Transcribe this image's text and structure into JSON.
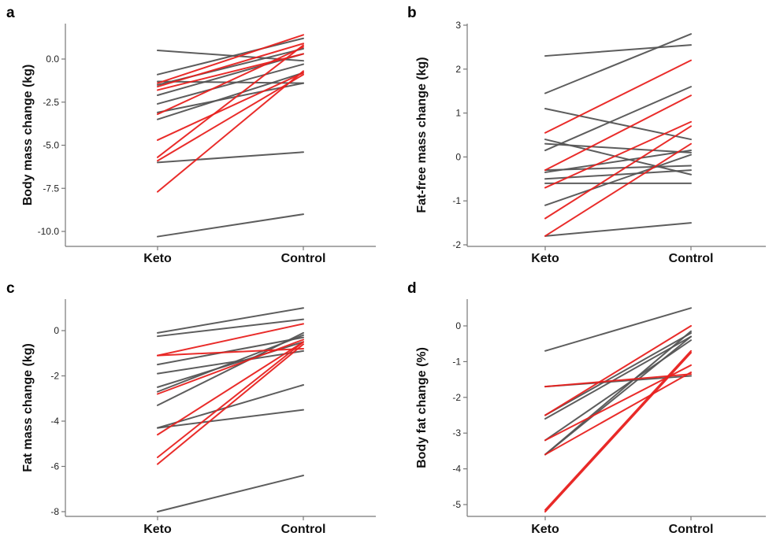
{
  "chart_data": [
    {
      "type": "line",
      "panel": "a",
      "categories": [
        "Keto",
        "Control"
      ],
      "ylabel": "Body mass change (kg)",
      "ylim": [
        -10.6,
        2.0
      ],
      "yticks": [
        0.0,
        -2.5,
        -5.0,
        -7.5,
        -10.0
      ],
      "ytick_labels": [
        "0.0",
        "-2.5",
        "-5.0",
        "-7.5",
        "-10.0"
      ],
      "series": [
        {
          "color": "#555555",
          "values": [
            0.5,
            -0.1
          ]
        },
        {
          "color": "#555555",
          "values": [
            -0.9,
            1.2
          ]
        },
        {
          "color": "#555555",
          "values": [
            -1.3,
            -1.4
          ]
        },
        {
          "color": "#555555",
          "values": [
            -1.5,
            0.6
          ]
        },
        {
          "color": "#555555",
          "values": [
            -2.1,
            0.3
          ]
        },
        {
          "color": "#555555",
          "values": [
            -2.6,
            -0.3
          ]
        },
        {
          "color": "#555555",
          "values": [
            -3.1,
            -1.4
          ]
        },
        {
          "color": "#555555",
          "values": [
            -3.5,
            -0.8
          ]
        },
        {
          "color": "#555555",
          "values": [
            -6.0,
            -5.4
          ]
        },
        {
          "color": "#555555",
          "values": [
            -10.3,
            -9.0
          ]
        },
        {
          "color": "#e8211f",
          "values": [
            -1.4,
            1.4
          ]
        },
        {
          "color": "#e8211f",
          "values": [
            -1.6,
            0.9
          ]
        },
        {
          "color": "#e8211f",
          "values": [
            -1.8,
            0.3
          ]
        },
        {
          "color": "#e8211f",
          "values": [
            -3.2,
            0.7
          ]
        },
        {
          "color": "#e8211f",
          "values": [
            -4.7,
            -0.8
          ]
        },
        {
          "color": "#e8211f",
          "values": [
            -5.7,
            0.8
          ]
        },
        {
          "color": "#e8211f",
          "values": [
            -5.9,
            -0.9
          ]
        },
        {
          "color": "#e8211f",
          "values": [
            -7.7,
            -0.7
          ]
        }
      ]
    },
    {
      "type": "line",
      "panel": "b",
      "categories": [
        "Keto",
        "Control"
      ],
      "ylabel": "Fat-free mass change (kg)",
      "ylim": [
        -2.0,
        3.0
      ],
      "yticks": [
        3,
        2,
        1,
        0,
        -1,
        -2
      ],
      "ytick_labels": [
        "3",
        "2",
        "1",
        "0",
        "-1",
        "-2"
      ],
      "series": [
        {
          "color": "#555555",
          "values": [
            2.3,
            2.55
          ]
        },
        {
          "color": "#555555",
          "values": [
            1.45,
            2.8
          ]
        },
        {
          "color": "#555555",
          "values": [
            1.1,
            0.4
          ]
        },
        {
          "color": "#555555",
          "values": [
            0.4,
            -0.4
          ]
        },
        {
          "color": "#555555",
          "values": [
            0.3,
            0.1
          ]
        },
        {
          "color": "#555555",
          "values": [
            0.15,
            1.6
          ]
        },
        {
          "color": "#555555",
          "values": [
            -0.3,
            -0.2
          ]
        },
        {
          "color": "#555555",
          "values": [
            -0.35,
            0.15
          ]
        },
        {
          "color": "#555555",
          "values": [
            -0.5,
            -0.3
          ]
        },
        {
          "color": "#555555",
          "values": [
            -0.6,
            -0.6
          ]
        },
        {
          "color": "#555555",
          "values": [
            -1.1,
            0.05
          ]
        },
        {
          "color": "#555555",
          "values": [
            -1.8,
            -1.5
          ]
        },
        {
          "color": "#e8211f",
          "values": [
            0.55,
            2.2
          ]
        },
        {
          "color": "#e8211f",
          "values": [
            -0.3,
            1.4
          ]
        },
        {
          "color": "#e8211f",
          "values": [
            -0.7,
            0.8
          ]
        },
        {
          "color": "#e8211f",
          "values": [
            -1.4,
            0.7
          ]
        },
        {
          "color": "#e8211f",
          "values": [
            -1.8,
            0.3
          ]
        }
      ]
    },
    {
      "type": "line",
      "panel": "c",
      "categories": [
        "Keto",
        "Control"
      ],
      "ylabel": "Fat mass change (kg)",
      "ylim": [
        -8.2,
        1.4
      ],
      "yticks": [
        0,
        -2,
        -4,
        -6,
        -8
      ],
      "ytick_labels": [
        "0",
        "-2",
        "-4",
        "-6",
        "-8"
      ],
      "series": [
        {
          "color": "#555555",
          "values": [
            -0.1,
            1.0
          ]
        },
        {
          "color": "#555555",
          "values": [
            -0.25,
            0.5
          ]
        },
        {
          "color": "#555555",
          "values": [
            -1.5,
            -0.3
          ]
        },
        {
          "color": "#555555",
          "values": [
            -1.9,
            -0.9
          ]
        },
        {
          "color": "#555555",
          "values": [
            -2.5,
            -0.5
          ]
        },
        {
          "color": "#555555",
          "values": [
            -2.7,
            -0.2
          ]
        },
        {
          "color": "#555555",
          "values": [
            -3.3,
            -0.1
          ]
        },
        {
          "color": "#555555",
          "values": [
            -4.3,
            -2.4
          ]
        },
        {
          "color": "#555555",
          "values": [
            -4.3,
            -3.5
          ]
        },
        {
          "color": "#555555",
          "values": [
            -8.0,
            -6.4
          ]
        },
        {
          "color": "#e8211f",
          "values": [
            -1.1,
            0.3
          ]
        },
        {
          "color": "#e8211f",
          "values": [
            -1.1,
            -0.8
          ]
        },
        {
          "color": "#e8211f",
          "values": [
            -2.8,
            -0.4
          ]
        },
        {
          "color": "#e8211f",
          "values": [
            -4.6,
            -0.5
          ]
        },
        {
          "color": "#e8211f",
          "values": [
            -5.6,
            -0.5
          ]
        },
        {
          "color": "#e8211f",
          "values": [
            -5.9,
            -0.6
          ]
        }
      ]
    },
    {
      "type": "line",
      "panel": "d",
      "categories": [
        "Keto",
        "Control"
      ],
      "ylabel": "Body fat change (%)",
      "ylim": [
        -5.3,
        0.9
      ],
      "yticks": [
        0,
        -1,
        -2,
        -3,
        -4,
        -5
      ],
      "ytick_labels": [
        "0",
        "-1",
        "-2",
        "-3",
        "-4",
        "-5"
      ],
      "series": [
        {
          "color": "#555555",
          "values": [
            -0.7,
            0.5
          ]
        },
        {
          "color": "#555555",
          "values": [
            -1.7,
            -1.4
          ]
        },
        {
          "color": "#555555",
          "values": [
            -2.5,
            -0.2
          ]
        },
        {
          "color": "#555555",
          "values": [
            -2.6,
            -0.3
          ]
        },
        {
          "color": "#555555",
          "values": [
            -3.2,
            -0.4
          ]
        },
        {
          "color": "#555555",
          "values": [
            -3.6,
            -0.15
          ]
        },
        {
          "color": "#555555",
          "values": [
            -3.6,
            -0.3
          ]
        },
        {
          "color": "#e8211f",
          "values": [
            -1.7,
            -1.35
          ]
        },
        {
          "color": "#e8211f",
          "values": [
            -2.5,
            0.0
          ]
        },
        {
          "color": "#e8211f",
          "values": [
            -3.2,
            -1.1
          ]
        },
        {
          "color": "#e8211f",
          "values": [
            -3.6,
            -1.3
          ]
        },
        {
          "color": "#e8211f",
          "values": [
            -5.15,
            -0.7
          ]
        },
        {
          "color": "#e8211f",
          "values": [
            -5.2,
            -0.75
          ]
        }
      ]
    }
  ]
}
